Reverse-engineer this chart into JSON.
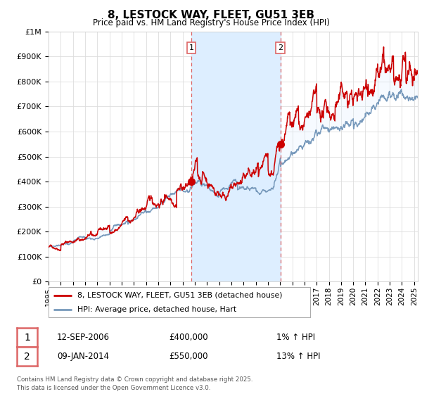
{
  "title": "8, LESTOCK WAY, FLEET, GU51 3EB",
  "subtitle": "Price paid vs. HM Land Registry's House Price Index (HPI)",
  "ylim": [
    0,
    1000000
  ],
  "xlim_start": 1995.0,
  "xlim_end": 2025.3,
  "yticks": [
    0,
    100000,
    200000,
    300000,
    400000,
    500000,
    600000,
    700000,
    800000,
    900000,
    1000000
  ],
  "ytick_labels": [
    "£0",
    "£100K",
    "£200K",
    "£300K",
    "£400K",
    "£500K",
    "£600K",
    "£700K",
    "£800K",
    "£900K",
    "£1M"
  ],
  "xticks": [
    1995,
    1996,
    1997,
    1998,
    1999,
    2000,
    2001,
    2002,
    2003,
    2004,
    2005,
    2006,
    2007,
    2008,
    2009,
    2010,
    2011,
    2012,
    2013,
    2014,
    2015,
    2016,
    2017,
    2018,
    2019,
    2020,
    2021,
    2022,
    2023,
    2024,
    2025
  ],
  "red_line_color": "#cc0000",
  "blue_line_color": "#7799bb",
  "shade_color": "#ddeeff",
  "vline1_x": 2006.72,
  "vline2_x": 2014.03,
  "vline_color": "#dd6666",
  "sale1_x": 2006.72,
  "sale1_y": 400000,
  "sale2_x": 2014.03,
  "sale2_y": 550000,
  "legend_line1": "8, LESTOCK WAY, FLEET, GU51 3EB (detached house)",
  "legend_line2": "HPI: Average price, detached house, Hart",
  "annotation1_date": "12-SEP-2006",
  "annotation1_price": "£400,000",
  "annotation1_hpi": "1% ↑ HPI",
  "annotation2_date": "09-JAN-2014",
  "annotation2_price": "£550,000",
  "annotation2_hpi": "13% ↑ HPI",
  "footnote": "Contains HM Land Registry data © Crown copyright and database right 2025.\nThis data is licensed under the Open Government Licence v3.0.",
  "background_color": "#ffffff",
  "grid_color": "#dddddd"
}
